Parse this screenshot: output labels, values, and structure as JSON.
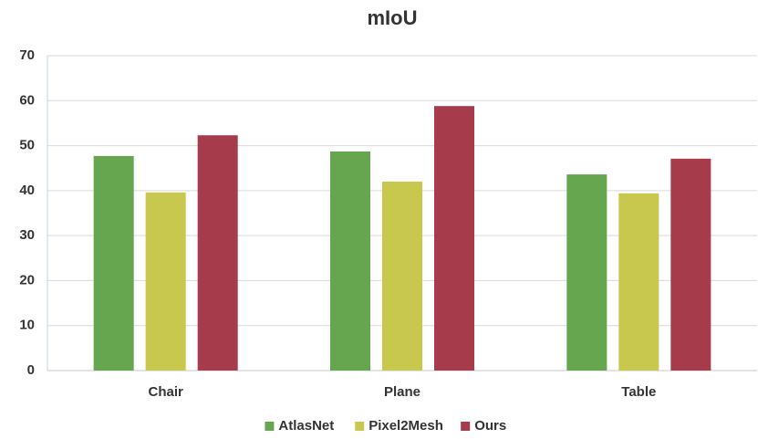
{
  "chart_data": {
    "type": "bar",
    "title": "mIoU",
    "categories": [
      "Chair",
      "Plane",
      "Table"
    ],
    "series": [
      {
        "name": "AtlasNet",
        "color": "#66a64f",
        "values": [
          47.7,
          48.7,
          43.6
        ]
      },
      {
        "name": "Pixel2Mesh",
        "color": "#c8c84e",
        "values": [
          39.6,
          42.0,
          39.4
        ]
      },
      {
        "name": "Ours",
        "color": "#a53b4b",
        "values": [
          52.3,
          58.8,
          47.1
        ]
      }
    ],
    "ylim": [
      0,
      70
    ],
    "yticks": [
      0,
      10,
      20,
      30,
      40,
      50,
      60,
      70
    ],
    "grid": true,
    "legend": "bottom"
  }
}
